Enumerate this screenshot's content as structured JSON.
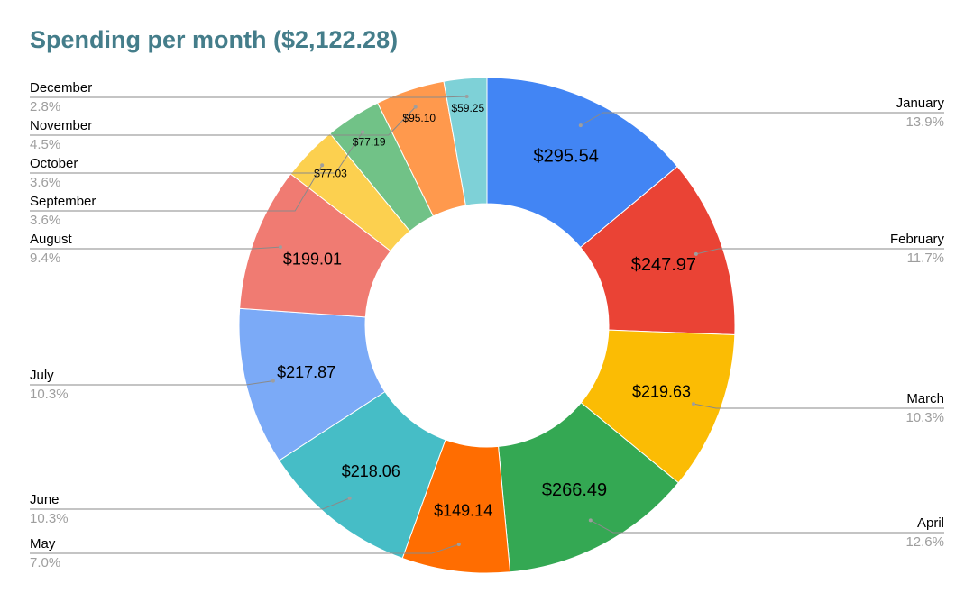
{
  "chart_data": {
    "type": "pie",
    "donut": true,
    "title": "Spending per month ($2,122.28)",
    "title_color": "#447d8a",
    "slices": [
      {
        "label": "January",
        "value": 295.54,
        "value_label": "$295.54",
        "percent_label": "13.9%",
        "color": "#4285f4"
      },
      {
        "label": "February",
        "value": 247.97,
        "value_label": "$247.97",
        "percent_label": "11.7%",
        "color": "#ea4335"
      },
      {
        "label": "March",
        "value": 219.63,
        "value_label": "$219.63",
        "percent_label": "10.3%",
        "color": "#fbbc04"
      },
      {
        "label": "April",
        "value": 266.49,
        "value_label": "$266.49",
        "percent_label": "12.6%",
        "color": "#34a853"
      },
      {
        "label": "May",
        "value": 149.14,
        "value_label": "$149.14",
        "percent_label": "7.0%",
        "color": "#ff6d01"
      },
      {
        "label": "June",
        "value": 218.06,
        "value_label": "$218.06",
        "percent_label": "10.3%",
        "color": "#46bdc6"
      },
      {
        "label": "July",
        "value": 217.87,
        "value_label": "$217.87",
        "percent_label": "10.3%",
        "color": "#7baaf7"
      },
      {
        "label": "August",
        "value": 199.01,
        "value_label": "$199.01",
        "percent_label": "9.4%",
        "color": "#f07b72"
      },
      {
        "label": "September",
        "value": 77.03,
        "value_label": "$77.03",
        "percent_label": "3.6%",
        "color": "#fcd04f"
      },
      {
        "label": "October",
        "value": 77.19,
        "value_label": "$77.19",
        "percent_label": "3.6%",
        "color": "#71c287"
      },
      {
        "label": "November",
        "value": 95.1,
        "value_label": "$95.10",
        "percent_label": "4.5%",
        "color": "#ff994d"
      },
      {
        "label": "December",
        "value": 59.25,
        "value_label": "$59.25",
        "percent_label": "2.8%",
        "color": "#7ed1d7"
      }
    ]
  }
}
